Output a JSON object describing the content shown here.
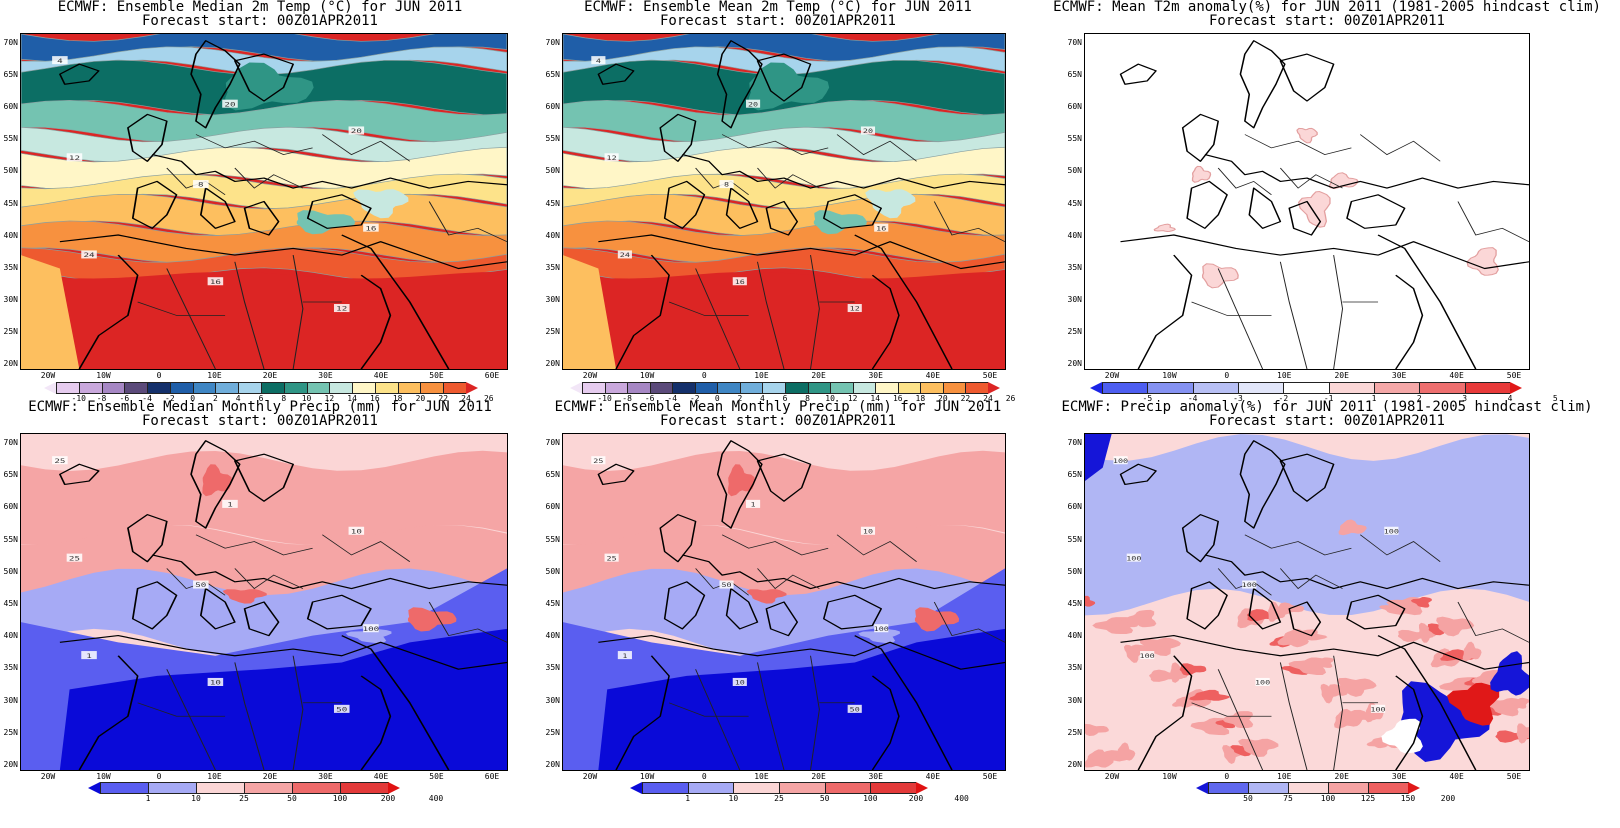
{
  "panels": [
    {
      "id": "p1",
      "title": "ECMWF: Ensemble Median 2m Temp (°C) for JUN 2011",
      "subtitle": "Forecast start: 00Z01APR2011",
      "field": "temp",
      "lat_labels": [
        "70N",
        "65N",
        "60N",
        "55N",
        "50N",
        "45N",
        "40N",
        "35N",
        "30N",
        "25N",
        "20N"
      ],
      "lon_labels": [
        "20W",
        "10W",
        "0",
        "10E",
        "20E",
        "30E",
        "40E",
        "50E",
        "60E"
      ],
      "colorbar": {
        "labels": [
          "-10",
          "-8",
          "-6",
          "-4",
          "-2",
          "0",
          "2",
          "4",
          "6",
          "8",
          "10",
          "12",
          "14",
          "16",
          "18",
          "20",
          "22",
          "24",
          "26"
        ],
        "colors": [
          "#f2e6f7",
          "#e6ccef",
          "#c9a8dc",
          "#a687c4",
          "#5b4a7a",
          "#14306b",
          "#1f5ea8",
          "#3f86c4",
          "#70aedb",
          "#a7d4ec",
          "#0c6e64",
          "#2f9585",
          "#74c3b1",
          "#c7e8e0",
          "#fff6c7",
          "#fde38a",
          "#fdbf5f",
          "#f7913f",
          "#ee5a2f",
          "#dc2524"
        ]
      },
      "contour_labels": [
        "4",
        "8",
        "12",
        "12",
        "16",
        "20",
        "24",
        "20",
        "16"
      ]
    },
    {
      "id": "p2",
      "title": "ECMWF: Ensemble Mean 2m Temp (°C) for JUN 2011",
      "subtitle": "Forecast start: 00Z01APR2011",
      "field": "temp",
      "lat_labels": [
        "70N",
        "65N",
        "60N",
        "55N",
        "50N",
        "45N",
        "40N",
        "35N",
        "30N",
        "25N",
        "20N"
      ],
      "lon_labels": [
        "20W",
        "10W",
        "0",
        "10E",
        "20E",
        "30E",
        "40E",
        "50E"
      ],
      "colorbar": {
        "labels": [
          "-10",
          "-8",
          "-6",
          "-4",
          "-2",
          "0",
          "2",
          "4",
          "6",
          "8",
          "10",
          "12",
          "14",
          "16",
          "18",
          "20",
          "22",
          "24",
          "26"
        ],
        "colors": [
          "#f2e6f7",
          "#e6ccef",
          "#c9a8dc",
          "#a687c4",
          "#5b4a7a",
          "#14306b",
          "#1f5ea8",
          "#3f86c4",
          "#70aedb",
          "#a7d4ec",
          "#0c6e64",
          "#2f9585",
          "#74c3b1",
          "#c7e8e0",
          "#fff6c7",
          "#fde38a",
          "#fdbf5f",
          "#f7913f",
          "#ee5a2f",
          "#dc2524"
        ]
      },
      "contour_labels": [
        "4",
        "8",
        "12",
        "12",
        "16",
        "20",
        "24",
        "20",
        "16"
      ]
    },
    {
      "id": "p3",
      "title": "ECMWF: Mean T2m anomaly(%) for JUN 2011 (1981-2005 hindcast clim)",
      "subtitle": "Forecast start: 00Z01APR2011",
      "field": "t2anom",
      "lat_labels": [
        "70N",
        "65N",
        "60N",
        "55N",
        "50N",
        "45N",
        "40N",
        "35N",
        "30N",
        "25N",
        "20N"
      ],
      "lon_labels": [
        "20W",
        "10W",
        "0",
        "10E",
        "20E",
        "30E",
        "40E",
        "50E"
      ],
      "colorbar": {
        "labels": [
          "-5",
          "-4",
          "-3",
          "-2",
          "-1",
          "1",
          "2",
          "3",
          "4",
          "5"
        ],
        "colors": [
          "#1b24e6",
          "#4d5ef0",
          "#8592f2",
          "#b8c0f5",
          "#e2e6fa",
          "#ffffff",
          "#fbd7d7",
          "#f5a8a8",
          "#ee6f6f",
          "#e83a3a",
          "#e01818"
        ]
      },
      "contour_labels": []
    },
    {
      "id": "p4",
      "title": "ECMWF: Ensemble Median Monthly Precip (mm) for JUN 2011",
      "subtitle": "Forecast start: 00Z01APR2011",
      "field": "precip",
      "lat_labels": [
        "70N",
        "65N",
        "60N",
        "55N",
        "50N",
        "45N",
        "40N",
        "35N",
        "30N",
        "25N",
        "20N"
      ],
      "lon_labels": [
        "20W",
        "10W",
        "0",
        "10E",
        "20E",
        "30E",
        "40E",
        "50E",
        "60E"
      ],
      "colorbar": {
        "labels": [
          "1",
          "10",
          "25",
          "50",
          "100",
          "200",
          "400"
        ],
        "colors": [
          "#0a0ad8",
          "#5a5ef0",
          "#a6aaf5",
          "#fbd6d6",
          "#f5a5a5",
          "#ee6a6a",
          "#e33a3a",
          "#e01212"
        ]
      },
      "contour_labels": [
        "25",
        "50",
        "50",
        "25",
        "10",
        "10",
        "1",
        "1",
        "100"
      ]
    },
    {
      "id": "p5",
      "title": "ECMWF: Ensemble Mean Monthly Precip (mm) for JUN 2011",
      "subtitle": "Forecast start: 00Z01APR2011",
      "field": "precip",
      "lat_labels": [
        "70N",
        "65N",
        "60N",
        "55N",
        "50N",
        "45N",
        "40N",
        "35N",
        "30N",
        "25N",
        "20N"
      ],
      "lon_labels": [
        "20W",
        "10W",
        "0",
        "10E",
        "20E",
        "30E",
        "40E",
        "50E"
      ],
      "colorbar": {
        "labels": [
          "1",
          "10",
          "25",
          "50",
          "100",
          "200",
          "400"
        ],
        "colors": [
          "#0a0ad8",
          "#5a5ef0",
          "#a6aaf5",
          "#fbd6d6",
          "#f5a5a5",
          "#ee6a6a",
          "#e33a3a",
          "#e01212"
        ]
      },
      "contour_labels": [
        "25",
        "50",
        "50",
        "25",
        "10",
        "10",
        "1",
        "1",
        "100"
      ]
    },
    {
      "id": "p6",
      "title": "ECMWF: Precip anomaly(%) for JUN 2011 (1981-2005 hindcast clim)",
      "subtitle": "Forecast start: 00Z01APR2011",
      "field": "panom",
      "lat_labels": [
        "70N",
        "65N",
        "60N",
        "55N",
        "50N",
        "45N",
        "40N",
        "35N",
        "30N",
        "25N",
        "20N"
      ],
      "lon_labels": [
        "20W",
        "10W",
        "0",
        "10E",
        "20E",
        "30E",
        "40E",
        "50E"
      ],
      "colorbar": {
        "labels": [
          "50",
          "75",
          "100",
          "125",
          "150",
          "200"
        ],
        "colors": [
          "#1515d8",
          "#6068ee",
          "#b0b6f4",
          "#fbd9d9",
          "#f5a3a3",
          "#ee6060",
          "#e01818"
        ]
      },
      "contour_labels": [
        "100",
        "100",
        "100",
        "100",
        "100",
        "100",
        "100"
      ]
    }
  ]
}
